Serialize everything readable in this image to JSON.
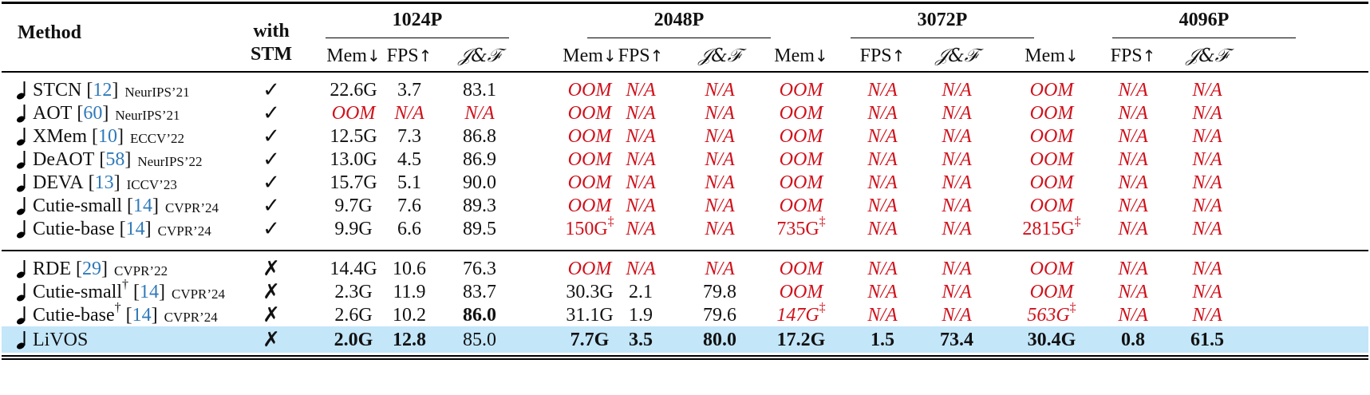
{
  "header": {
    "method": "Method",
    "with": "with",
    "stm": "STM",
    "resolutions": [
      "1024P",
      "2048P",
      "3072P",
      "4096P"
    ],
    "mem": "Mem",
    "fps": "FPS",
    "jf": "𝒥&ℱ",
    "down_arrow": "↓",
    "up_arrow": "↑"
  },
  "rows": [
    {
      "name": "STCN",
      "dagger": "",
      "cite": "12",
      "venue": "NeurIPS’21",
      "stm": "✓",
      "vals": [
        "22.6G",
        "3.7",
        "83.1",
        "OOM",
        "N/A",
        "N/A",
        "OOM",
        "N/A",
        "N/A",
        "OOM",
        "N/A",
        "N/A"
      ],
      "ddag": [
        "",
        "",
        "",
        "",
        "",
        "",
        "",
        "",
        "",
        "",
        "",
        ""
      ]
    },
    {
      "name": "AOT",
      "dagger": "",
      "cite": "60",
      "venue": "NeurIPS’21",
      "stm": "✓",
      "vals": [
        "OOM",
        "N/A",
        "N/A",
        "OOM",
        "N/A",
        "N/A",
        "OOM",
        "N/A",
        "N/A",
        "OOM",
        "N/A",
        "N/A"
      ],
      "ddag": [
        "",
        "",
        "",
        "",
        "",
        "",
        "",
        "",
        "",
        "",
        "",
        ""
      ]
    },
    {
      "name": "XMem",
      "dagger": "",
      "cite": "10",
      "venue": "ECCV’22",
      "stm": "✓",
      "vals": [
        "12.5G",
        "7.3",
        "86.8",
        "OOM",
        "N/A",
        "N/A",
        "OOM",
        "N/A",
        "N/A",
        "OOM",
        "N/A",
        "N/A"
      ],
      "ddag": [
        "",
        "",
        "",
        "",
        "",
        "",
        "",
        "",
        "",
        "",
        "",
        ""
      ]
    },
    {
      "name": "DeAOT",
      "dagger": "",
      "cite": "58",
      "venue": "NeurIPS’22",
      "stm": "✓",
      "vals": [
        "13.0G",
        "4.5",
        "86.9",
        "OOM",
        "N/A",
        "N/A",
        "OOM",
        "N/A",
        "N/A",
        "OOM",
        "N/A",
        "N/A"
      ],
      "ddag": [
        "",
        "",
        "",
        "",
        "",
        "",
        "",
        "",
        "",
        "",
        "",
        ""
      ]
    },
    {
      "name": "DEVA",
      "dagger": "",
      "cite": "13",
      "venue": "ICCV’23",
      "stm": "✓",
      "vals": [
        "15.7G",
        "5.1",
        "90.0",
        "OOM",
        "N/A",
        "N/A",
        "OOM",
        "N/A",
        "N/A",
        "OOM",
        "N/A",
        "N/A"
      ],
      "ddag": [
        "",
        "",
        "",
        "",
        "",
        "",
        "",
        "",
        "",
        "",
        "",
        ""
      ]
    },
    {
      "name": "Cutie-small",
      "dagger": "",
      "cite": "14",
      "venue": "CVPR’24",
      "stm": "✓",
      "vals": [
        "9.7G",
        "7.6",
        "89.3",
        "OOM",
        "N/A",
        "N/A",
        "OOM",
        "N/A",
        "N/A",
        "OOM",
        "N/A",
        "N/A"
      ],
      "ddag": [
        "",
        "",
        "",
        "",
        "",
        "",
        "",
        "",
        "",
        "",
        "",
        ""
      ]
    },
    {
      "name": "Cutie-base",
      "dagger": "",
      "cite": "14",
      "venue": "CVPR’24",
      "stm": "✓",
      "vals": [
        "9.9G",
        "6.6",
        "89.5",
        "150G",
        "N/A",
        "N/A",
        "735G",
        "N/A",
        "N/A",
        "2815G",
        "N/A",
        "N/A"
      ],
      "ddag": [
        "",
        "",
        "",
        "‡",
        "",
        "",
        "‡",
        "",
        "",
        "‡",
        "",
        ""
      ]
    },
    {
      "name": "RDE",
      "dagger": "",
      "cite": "29",
      "venue": "CVPR’22",
      "stm": "✗",
      "vals": [
        "14.4G",
        "10.6",
        "76.3",
        "OOM",
        "N/A",
        "N/A",
        "OOM",
        "N/A",
        "N/A",
        "OOM",
        "N/A",
        "N/A"
      ],
      "ddag": [
        "",
        "",
        "",
        "",
        "",
        "",
        "",
        "",
        "",
        "",
        "",
        ""
      ]
    },
    {
      "name": "Cutie-small",
      "dagger": "†",
      "cite": "14",
      "venue": "CVPR’24",
      "stm": "✗",
      "vals": [
        "2.3G",
        "11.9",
        "83.7",
        "30.3G",
        "2.1",
        "79.8",
        "OOM",
        "N/A",
        "N/A",
        "OOM",
        "N/A",
        "N/A"
      ],
      "ddag": [
        "",
        "",
        "",
        "",
        "",
        "",
        "",
        "",
        "",
        "",
        "",
        ""
      ]
    },
    {
      "name": "Cutie-base",
      "dagger": "†",
      "cite": "14",
      "venue": "CVPR’24",
      "stm": "✗",
      "vals": [
        "2.6G",
        "10.2",
        "86.0",
        "31.1G",
        "1.9",
        "79.6",
        "147G",
        "N/A",
        "N/A",
        "563G",
        "N/A",
        "N/A"
      ],
      "ddag": [
        "",
        "",
        "",
        "",
        "",
        "",
        "‡",
        "",
        "",
        "‡",
        "",
        ""
      ]
    },
    {
      "name": "LiVOS",
      "dagger": "",
      "cite": "",
      "venue": "",
      "stm": "✗",
      "vals": [
        "2.0G",
        "12.8",
        "85.0",
        "7.7G",
        "3.5",
        "80.0",
        "17.2G",
        "1.5",
        "73.4",
        "30.4G",
        "0.8",
        "61.5"
      ],
      "ddag": [
        "",
        "",
        "",
        "",
        "",
        "",
        "",
        "",
        "",
        "",
        "",
        ""
      ]
    }
  ],
  "colors": {
    "oom": "#d0101a",
    "cite": "#2f79b9",
    "highlight": "#c3e6f9"
  }
}
